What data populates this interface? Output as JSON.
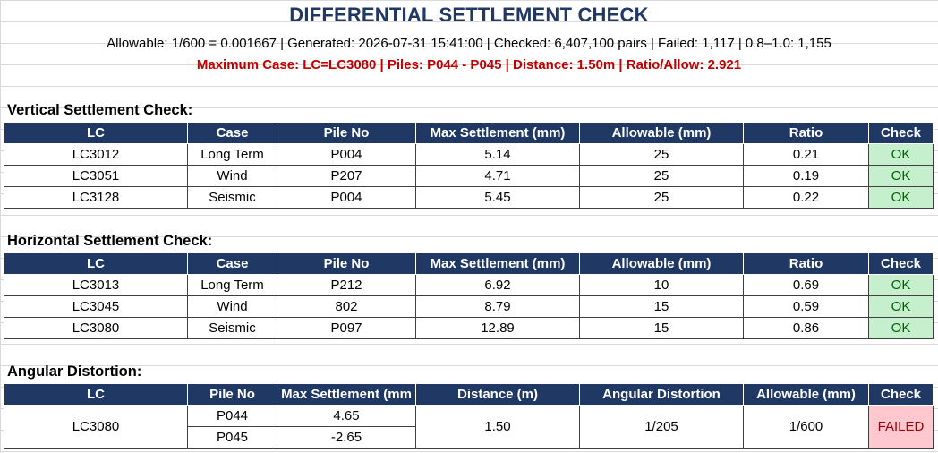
{
  "title": "DIFFERENTIAL SETTLEMENT CHECK",
  "info_line": "Allowable: 1/600 = 0.001667 | Generated: 2026-07-31 15:41:00 | Checked: 6,407,100 pairs | Failed: 1,117 | 0.8–1.0: 1,155",
  "max_case_line": "Maximum Case: LC=LC3080 | Piles: P044 - P045 | Distance: 1.50m | Ratio/Allow: 2.921",
  "colors": {
    "header_bg": "#1f3864",
    "title": "#1f3864",
    "alert": "#c00000",
    "ok_bg": "#c6efce",
    "fail_bg": "#ffc7ce"
  },
  "vertical": {
    "title": "Vertical Settlement Check:",
    "headers": [
      "LC",
      "Case",
      "Pile No",
      "Max Settlement (mm)",
      "Allowable (mm)",
      "Ratio",
      "Check"
    ],
    "rows": [
      [
        "LC3012",
        "Long Term",
        "P004",
        "5.14",
        "25",
        "0.21",
        "OK"
      ],
      [
        "LC3051",
        "Wind",
        "P207",
        "4.71",
        "25",
        "0.19",
        "OK"
      ],
      [
        "LC3128",
        "Seismic",
        "P004",
        "5.45",
        "25",
        "0.22",
        "OK"
      ]
    ]
  },
  "horizontal": {
    "title": "Horizontal Settlement Check:",
    "headers": [
      "LC",
      "Case",
      "Pile No",
      "Max Settlement (mm)",
      "Allowable (mm)",
      "Ratio",
      "Check"
    ],
    "rows": [
      [
        "LC3013",
        "Long Term",
        "P212",
        "6.92",
        "10",
        "0.69",
        "OK"
      ],
      [
        "LC3045",
        "Wind",
        "802",
        "8.79",
        "15",
        "0.59",
        "OK"
      ],
      [
        "LC3080",
        "Seismic",
        "P097",
        "12.89",
        "15",
        "0.86",
        "OK"
      ]
    ]
  },
  "angular": {
    "title": "Angular Distortion:",
    "headers": [
      "LC",
      "Pile No",
      "Max Settlement (mm",
      "Distance (m)",
      "Angular Distortion",
      "Allowable (mm)",
      "Check"
    ],
    "lc": "LC3080",
    "piles": [
      "P044",
      "P045"
    ],
    "settlements": [
      "4.65",
      "-2.65"
    ],
    "distance": "1.50",
    "distortion": "1/205",
    "allowable": "1/600",
    "check": "FAILED"
  }
}
